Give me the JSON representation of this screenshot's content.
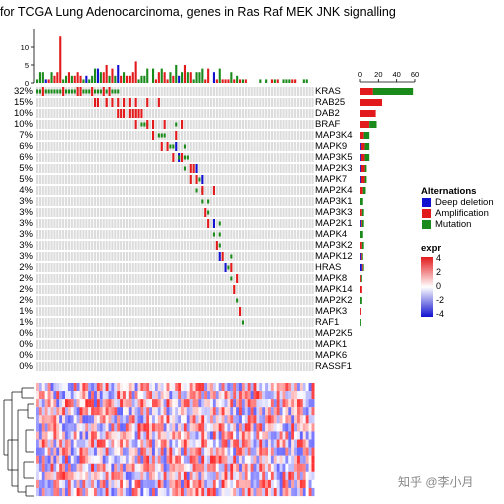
{
  "chart_data": {
    "type": "heatmap",
    "title": "for TCGA Lung Adenocarcinoma, genes in Ras Raf MEK JNK signalling",
    "genes": [
      "KRAS",
      "RAB25",
      "DAB2",
      "BRAF",
      "MAP3K4",
      "MAPK9",
      "MAP3K5",
      "MAP2K3",
      "MAPK7",
      "MAP2K4",
      "MAP3K1",
      "MAP3K3",
      "MAP2K1",
      "MAPK4",
      "MAP3K2",
      "MAPK12",
      "HRAS",
      "MAPK8",
      "MAPK14",
      "MAP2K2",
      "MAPK3",
      "RAF1",
      "MAP2K5",
      "MAPK1",
      "MAPK6",
      "RASSF1"
    ],
    "percentages": [
      "32%",
      "15%",
      "10%",
      "10%",
      "7%",
      "6%",
      "6%",
      "5%",
      "5%",
      "4%",
      "3%",
      "3%",
      "3%",
      "3%",
      "3%",
      "3%",
      "2%",
      "2%",
      "2%",
      "2%",
      "1%",
      "1%",
      "0%",
      "0%",
      "0%",
      "0%"
    ],
    "top_annotation": {
      "ylim": [
        0,
        15
      ],
      "yticks": [
        "0",
        "5",
        "10"
      ]
    },
    "right_annotation": {
      "xlim": [
        0,
        60
      ],
      "xticks": [
        "0",
        "20",
        "40",
        "60"
      ],
      "series": [
        {
          "name": "Mutation",
          "color": "#1a8a1a",
          "values": [
            44,
            0,
            0,
            8,
            6,
            5,
            5,
            2,
            2,
            3,
            3,
            2,
            2,
            3,
            2,
            1,
            1,
            1,
            0,
            2,
            0,
            1,
            0,
            0,
            0,
            0
          ]
        },
        {
          "name": "Amplification",
          "color": "#e31a1c",
          "values": [
            14,
            24,
            17,
            10,
            4,
            4,
            4,
            4,
            4,
            3,
            0,
            2,
            1,
            0,
            2,
            1,
            1,
            1,
            2,
            0,
            1,
            0,
            0,
            0,
            0,
            0
          ]
        },
        {
          "name": "Deep deletion",
          "color": "#1010d0",
          "values": [
            0,
            0,
            0,
            0,
            0,
            1,
            1,
            1,
            1,
            0,
            0,
            0,
            1,
            0,
            0,
            1,
            2,
            0,
            0,
            0,
            0,
            0,
            0,
            0,
            0,
            0
          ]
        }
      ]
    },
    "legend": {
      "title": "Alternations",
      "items": [
        {
          "label": "Deep deletion",
          "color": "#1010d0"
        },
        {
          "label": "Amplification",
          "color": "#e31a1c"
        },
        {
          "label": "Mutation",
          "color": "#1a8a1a"
        }
      ]
    },
    "expr_legend": {
      "title": "expr",
      "ticks": [
        "4",
        "2",
        "0",
        "-2",
        "-4"
      ],
      "colors": [
        "#e31a1c",
        "#ffffff",
        "#1010d0"
      ]
    },
    "grid_background": "#dcdcdc",
    "heatmap_rows": 14
  },
  "watermark": "知乎 @李小月"
}
